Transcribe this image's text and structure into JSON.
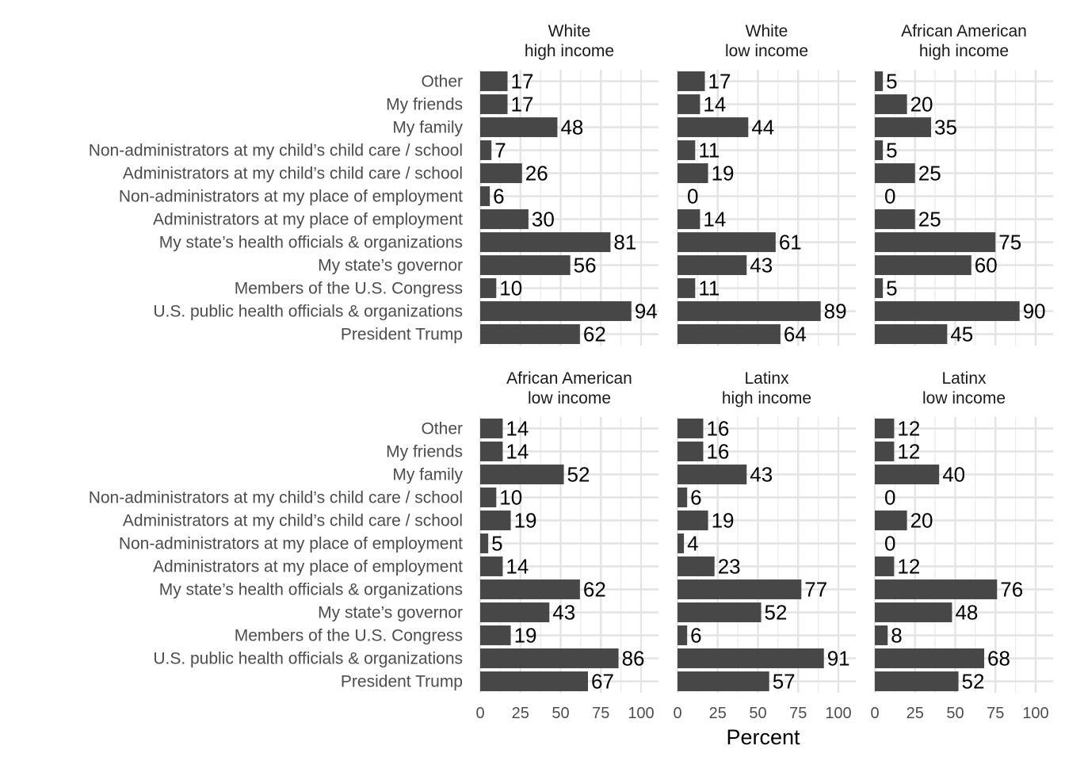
{
  "chart_data": {
    "type": "bar",
    "orientation": "horizontal",
    "xlabel": "Percent",
    "ylabel": "",
    "xlim": [
      0,
      100
    ],
    "xticks": [
      "0",
      "25",
      "50",
      "75",
      "100"
    ],
    "bar_color": "#474747",
    "grid": true,
    "categories": [
      "Other",
      "My friends",
      "My family",
      "Non-administrators at my child’s child care / school",
      "Administrators at my child’s child care / school",
      "Non-administrators at my place of employment",
      "Administrators at my place of employment",
      "My state’s health officials & organizations",
      "My state’s governor",
      "Members of the U.S. Congress",
      "U.S. public health officials & organizations",
      "President Trump"
    ],
    "panels": [
      {
        "title_line1": "White",
        "title_line2": "high income",
        "values": [
          17,
          17,
          48,
          7,
          26,
          6,
          30,
          81,
          56,
          10,
          94,
          62
        ]
      },
      {
        "title_line1": "White",
        "title_line2": "low income",
        "values": [
          17,
          14,
          44,
          11,
          19,
          0,
          14,
          61,
          43,
          11,
          89,
          64
        ]
      },
      {
        "title_line1": "African American",
        "title_line2": "high income",
        "values": [
          5,
          20,
          35,
          5,
          25,
          0,
          25,
          75,
          60,
          5,
          90,
          45
        ]
      },
      {
        "title_line1": "African American",
        "title_line2": "low income",
        "values": [
          14,
          14,
          52,
          10,
          19,
          5,
          14,
          62,
          43,
          19,
          86,
          67
        ]
      },
      {
        "title_line1": "Latinx",
        "title_line2": "high income",
        "values": [
          16,
          16,
          43,
          6,
          19,
          4,
          23,
          77,
          52,
          6,
          91,
          57
        ]
      },
      {
        "title_line1": "Latinx",
        "title_line2": "low income",
        "values": [
          12,
          12,
          40,
          0,
          20,
          0,
          12,
          76,
          48,
          8,
          68,
          52
        ]
      }
    ]
  }
}
